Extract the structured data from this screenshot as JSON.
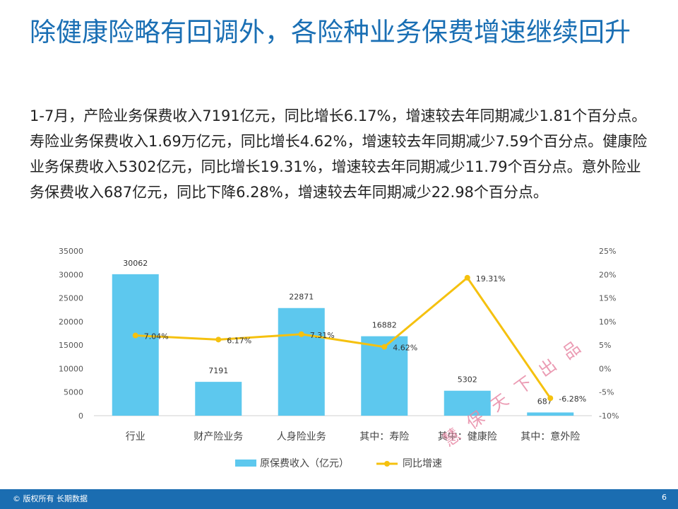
{
  "title": "除健康险略有回调外，各险种业务保费增速继续回升",
  "paragraph": "1-7月，产险业务保费收入7191亿元，同比增长6.17%，增速较去年同期减少1.81个百分点。寿险业务保费收入1.69万亿元，同比增长4.62%，增速较去年同期减少7.59个百分点。健康险业务保费收入5302亿元，同比增长19.31%，增速较去年同期减少11.79个百分点。意外险业务保费收入687亿元，同比下降6.28%，增速较去年同期减少22.98个百分点。",
  "chart_data": {
    "type": "bar",
    "categories": [
      "行业",
      "财产险业务",
      "人身险业务",
      "其中：寿险",
      "其中：健康险",
      "其中：意外险"
    ],
    "series": [
      {
        "name": "原保费收入（亿元）",
        "type": "bar",
        "values": [
          30062,
          7191,
          22871,
          16882,
          5302,
          687
        ],
        "labels": [
          "30062",
          "7191",
          "22871",
          "16882",
          "5302",
          "687"
        ],
        "color": "#5dc8ee"
      },
      {
        "name": "同比增速",
        "type": "line",
        "axis": "right",
        "values": [
          7.04,
          6.17,
          7.31,
          4.62,
          19.31,
          -6.28
        ],
        "labels": [
          "7.04%",
          "6.17%",
          "7.31%",
          "4.62%",
          "19.31%",
          "-6.28%"
        ],
        "color": "#f5c10f"
      }
    ],
    "left_axis": {
      "min": 0,
      "max": 35000,
      "ticks": [
        "0",
        "5000",
        "10000",
        "15000",
        "20000",
        "25000",
        "30000",
        "35000"
      ]
    },
    "right_axis": {
      "min": -10,
      "max": 25,
      "ticks": [
        "-10%",
        "-5%",
        "0%",
        "5%",
        "10%",
        "15%",
        "20%",
        "25%"
      ]
    },
    "legend_position": "bottom",
    "grid": false
  },
  "legend": {
    "bar_label": "原保费收入（亿元）",
    "line_label": "同比增速"
  },
  "footer": {
    "copyright": "© 版权所有 长期数据",
    "page_number": "6"
  },
  "watermark": "慧保天下出品"
}
